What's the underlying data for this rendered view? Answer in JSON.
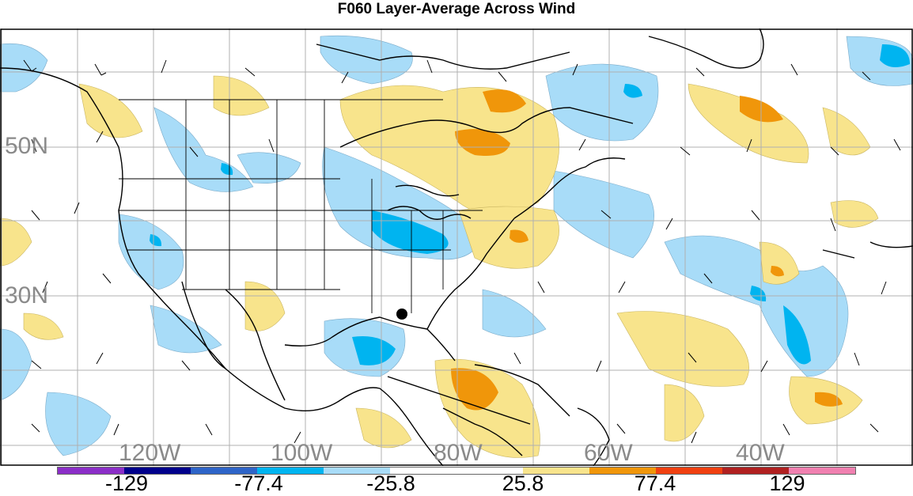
{
  "title": "F060 Layer-Average Across Wind",
  "map": {
    "lat_labels": [
      "50N",
      "30N"
    ],
    "lon_labels": [
      "120W",
      "100W",
      "80W",
      "60W",
      "40W"
    ],
    "land_color": "#ffffff",
    "line_color": "#000000",
    "grid_color": "#b0b0b0"
  },
  "colorbar": {
    "colors": [
      "#8b2ec8",
      "#00008b",
      "#2e64c8",
      "#00b4f0",
      "#a8dcf8",
      "#ffffff",
      "#ffffff",
      "#f8e48c",
      "#f0960a",
      "#f04010",
      "#b02020",
      "#f080b0"
    ],
    "labels": [
      "-129",
      "-77.4",
      "-25.8",
      "25.8",
      "77.4",
      "129"
    ]
  },
  "marker_icon": "storm-center-dot"
}
